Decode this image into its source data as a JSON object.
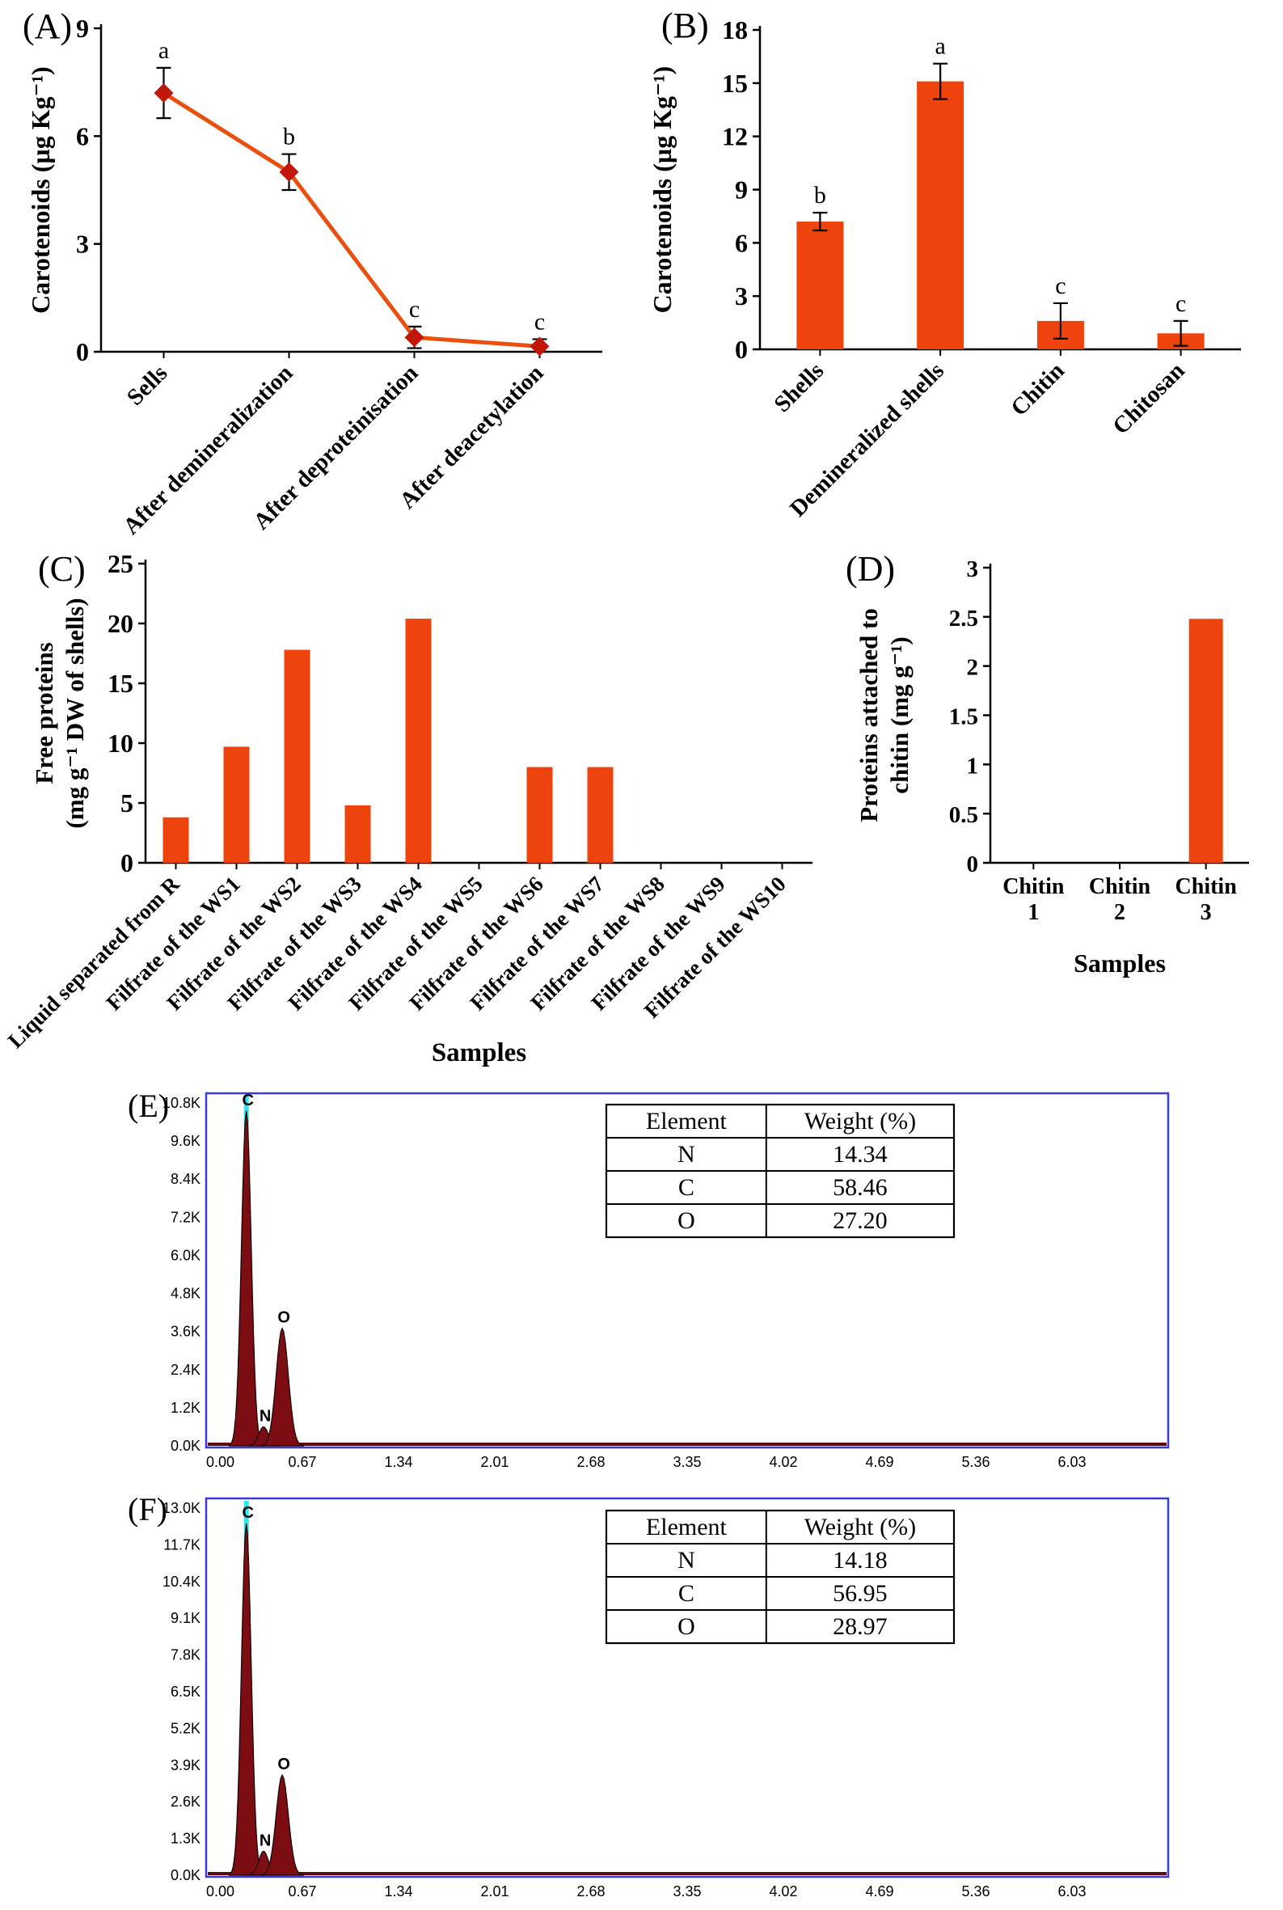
{
  "panels": {
    "a_label": "(A)",
    "b_label": "(B)",
    "c_label": "(C)",
    "d_label": "(D)",
    "e_label": "(E)",
    "f_label": "(F)"
  },
  "colors": {
    "bar": "#ee430d",
    "line": "#e9500f",
    "marker": "#c1170a",
    "peak": "#7c0d12",
    "box": "#3b3bd6",
    "cursor": "#35e3ef",
    "axis": "#000000"
  },
  "chart_data": [
    {
      "id": "A",
      "type": "line",
      "ylabel": "Carotenoids  (µg Kg⁻¹)",
      "ylim": [
        0,
        9
      ],
      "yticks": [
        0,
        3,
        6,
        9
      ],
      "categories": [
        "Sells",
        "After demineralization",
        "After deproteinisation",
        "After deacetylation"
      ],
      "values": [
        7.2,
        5.0,
        0.4,
        0.15
      ],
      "errors": [
        0.7,
        0.5,
        0.3,
        0.2
      ],
      "point_labels": [
        "a",
        "b",
        "c",
        "c"
      ]
    },
    {
      "id": "B",
      "type": "bar",
      "ylabel": "Carotenoids  (µg Kg⁻¹)",
      "ylim": [
        0,
        18
      ],
      "yticks": [
        0,
        3,
        6,
        9,
        12,
        15,
        18
      ],
      "categories": [
        "Shells",
        "Demineralized shells",
        "Chitin",
        "Chitosan"
      ],
      "values": [
        7.2,
        15.1,
        1.6,
        0.9
      ],
      "errors": [
        0.5,
        1.0,
        1.0,
        0.7
      ],
      "point_labels": [
        "b",
        "a",
        "c",
        "c"
      ]
    },
    {
      "id": "C",
      "type": "bar",
      "ylabel_lines": [
        "Free proteins",
        "(mg g⁻¹ DW of shells)"
      ],
      "xlabel": "Samples",
      "ylim": [
        0,
        25
      ],
      "yticks": [
        0,
        5,
        10,
        15,
        20,
        25
      ],
      "categories": [
        "Liquid separated from R",
        "Filfrate of the WS1",
        "Filfrate of the WS2",
        "Filfrate of the WS3",
        "Filfrate of the WS4",
        "Filfrate of the WS5",
        "Filfrate of the WS6",
        "Filfrate of the WS7",
        "Filfrate of the WS8",
        "Filfrate of the WS9",
        "Filfrate of the WS10"
      ],
      "values": [
        3.8,
        9.7,
        17.8,
        4.8,
        20.4,
        0,
        8.0,
        8.0,
        0,
        0,
        0
      ]
    },
    {
      "id": "D",
      "type": "bar",
      "ylabel_lines": [
        "Proteins attached to",
        "chitin (mg g⁻¹)"
      ],
      "xlabel": "Samples",
      "ylim": [
        0,
        3
      ],
      "yticks": [
        0,
        0.5,
        1,
        1.5,
        2,
        2.5,
        3
      ],
      "categories_multiline": [
        [
          "Chitin",
          "1"
        ],
        [
          "Chitin",
          "2"
        ],
        [
          "Chitin",
          "3"
        ]
      ],
      "values": [
        0,
        0,
        2.48
      ]
    },
    {
      "id": "E",
      "type": "area",
      "ymax": 10.8,
      "ytick_step": 1.2,
      "ytick_labels": [
        "0.0K",
        "1.2K",
        "2.4K",
        "3.6K",
        "4.8K",
        "6.0K",
        "7.2K",
        "8.4K",
        "9.6K",
        "10.8K"
      ],
      "xmax": 6.7,
      "xtick_step": 0.67,
      "xtick_labels": [
        "0.00",
        "0.67",
        "1.34",
        "2.01",
        "2.68",
        "3.35",
        "4.02",
        "4.69",
        "5.36",
        "6.03"
      ],
      "peaks": [
        {
          "element": "C",
          "kev": 0.28,
          "height": 10.55
        },
        {
          "element": "N",
          "kev": 0.4,
          "height": 0.6
        },
        {
          "element": "O",
          "kev": 0.53,
          "height": 3.7
        }
      ],
      "table": {
        "headers": [
          "Element",
          "Weight (%)"
        ],
        "rows": [
          [
            "N",
            "14.34"
          ],
          [
            "C",
            "58.46"
          ],
          [
            "O",
            "27.20"
          ]
        ]
      }
    },
    {
      "id": "F",
      "type": "area",
      "ymax": 13.0,
      "ytick_step": 1.3,
      "ytick_labels": [
        "0.0K",
        "1.3K",
        "2.6K",
        "3.9K",
        "5.2K",
        "6.5K",
        "7.8K",
        "9.1K",
        "10.4K",
        "11.7K",
        "13.0K"
      ],
      "xmax": 6.7,
      "xtick_step": 0.67,
      "xtick_labels": [
        "0.00",
        "0.67",
        "1.34",
        "2.01",
        "2.68",
        "3.35",
        "4.02",
        "4.69",
        "5.36",
        "6.03"
      ],
      "peaks": [
        {
          "element": "C",
          "kev": 0.28,
          "height": 12.45
        },
        {
          "element": "N",
          "kev": 0.4,
          "height": 0.85
        },
        {
          "element": "O",
          "kev": 0.53,
          "height": 3.55
        }
      ],
      "table": {
        "headers": [
          "Element",
          "Weight (%)"
        ],
        "rows": [
          [
            "N",
            "14.18"
          ],
          [
            "C",
            "56.95"
          ],
          [
            "O",
            "28.97"
          ]
        ]
      }
    }
  ]
}
